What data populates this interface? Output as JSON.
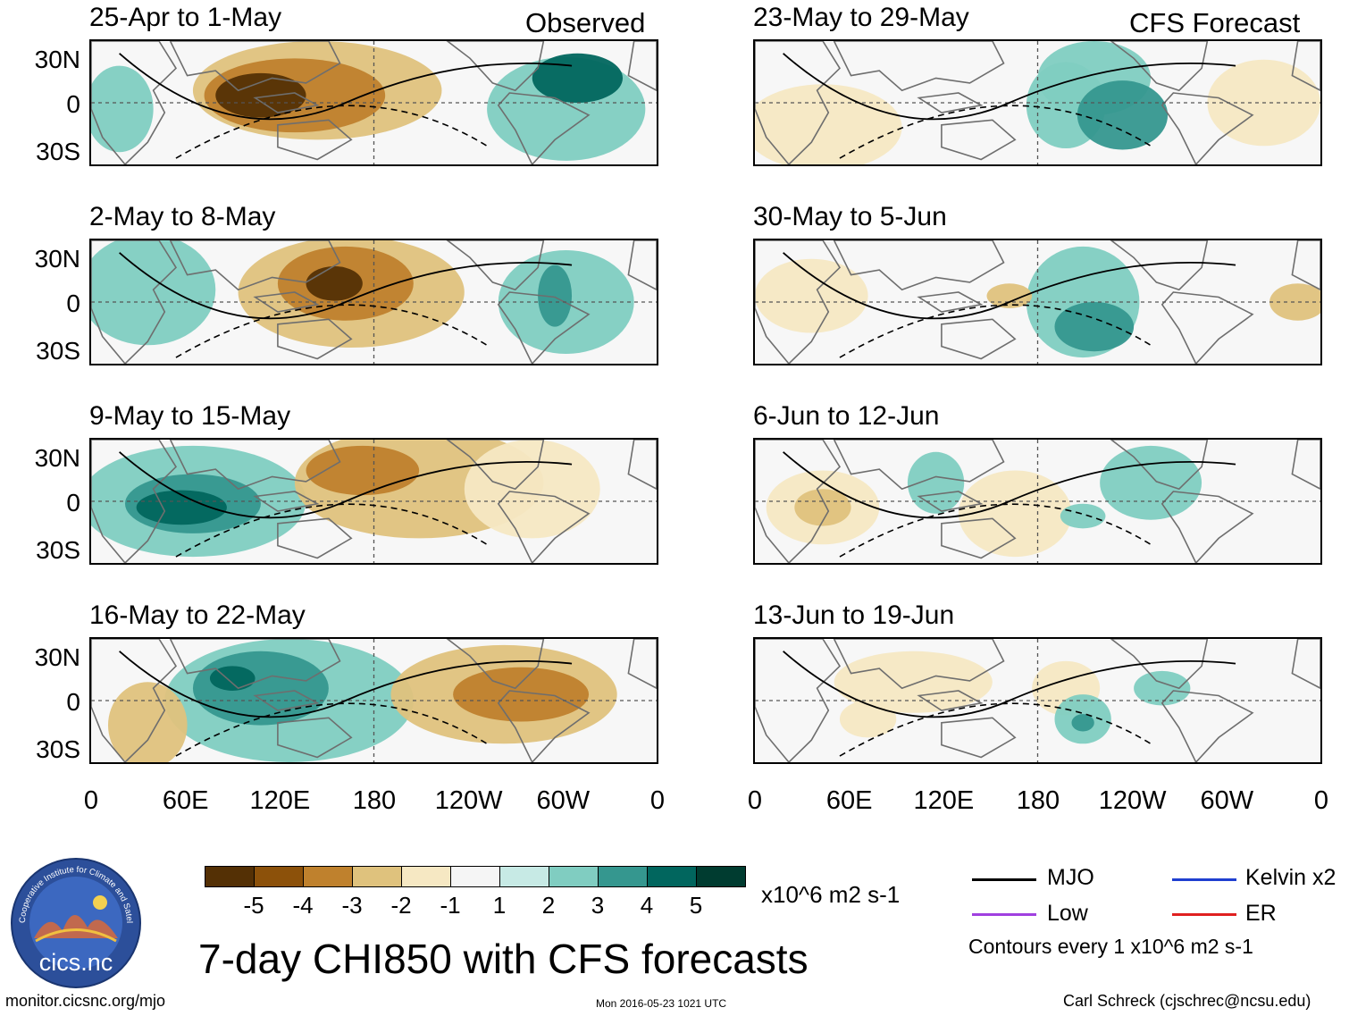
{
  "headers": {
    "left": "Observed",
    "right": "CFS Forecast"
  },
  "lat_labels": [
    "30N",
    "0",
    "30S"
  ],
  "lon_labels": [
    "0",
    "60E",
    "120E",
    "180",
    "120W",
    "60W",
    "0"
  ],
  "observed_panels": [
    {
      "title": "25-Apr to 1-May"
    },
    {
      "title": "2-May to 8-May"
    },
    {
      "title": "9-May to 15-May"
    },
    {
      "title": "16-May to 22-May"
    }
  ],
  "forecast_panels": [
    {
      "title": "23-May to 29-May"
    },
    {
      "title": "30-May to 5-Jun"
    },
    {
      "title": "6-Jun to 12-Jun"
    },
    {
      "title": "13-Jun to 19-Jun"
    }
  ],
  "colorbar": {
    "colors": [
      "#543005",
      "#8c510a",
      "#bf812d",
      "#dfc27d",
      "#f6e8c3",
      "#f5f5f5",
      "#c7eae5",
      "#80cdc1",
      "#35978f",
      "#01665e",
      "#003c30"
    ],
    "ticks": [
      "-5",
      "-4",
      "-3",
      "-2",
      "-1",
      "1",
      "2",
      "3",
      "4",
      "5"
    ],
    "units": "x10^6 m2 s-1"
  },
  "legend": {
    "items": [
      {
        "label": "MJO",
        "color": "#000000"
      },
      {
        "label": "Kelvin x2",
        "color": "#1f3fd0"
      },
      {
        "label": "Low",
        "color": "#a040e0"
      },
      {
        "label": "ER",
        "color": "#e02020"
      }
    ],
    "note": "Contours every 1 x10^6 m2 s-1"
  },
  "title": "7-day CHI850 with CFS forecasts",
  "logo_text": "cics.nc",
  "logo_ring_text": "Cooperative Institute for Climate and Satellites",
  "footer": {
    "left": "monitor.cicsnc.org/mjo",
    "center": "Mon 2016-05-23 1021 UTC",
    "right": "Carl Schreck (cjschrec@ncsu.edu)"
  }
}
